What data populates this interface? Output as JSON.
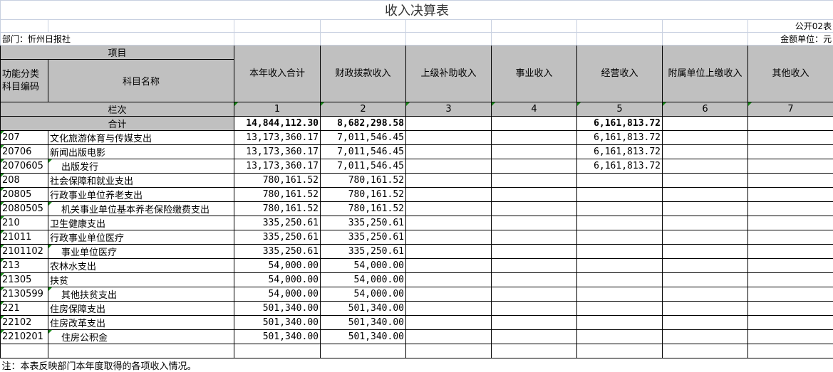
{
  "title": "收入决算表",
  "form_code": "公开02表",
  "department": "部门：忻州日报社",
  "unit": "金额单位：元",
  "header": {
    "item": "项目",
    "code": "功能分类科目编码",
    "name": "科目名称",
    "columns": [
      "本年收入合计",
      "财政拨款收入",
      "上级补助收入",
      "事业收入",
      "经营收入",
      "附属单位上缴收入",
      "其他收入"
    ],
    "row_index_label": "栏次",
    "row_index": [
      "1",
      "2",
      "3",
      "4",
      "5",
      "6",
      "7"
    ]
  },
  "total": {
    "label": "合计",
    "values": [
      "14,844,112.30",
      "8,682,298.58",
      "",
      "",
      "6,161,813.72",
      "",
      ""
    ]
  },
  "rows": [
    {
      "code": "207",
      "name": "文化旅游体育与传媒支出",
      "indent": false,
      "values": [
        "13,173,360.17",
        "7,011,546.45",
        "",
        "",
        "6,161,813.72",
        "",
        ""
      ]
    },
    {
      "code": "20706",
      "name": "新闻出版电影",
      "indent": false,
      "values": [
        "13,173,360.17",
        "7,011,546.45",
        "",
        "",
        "6,161,813.72",
        "",
        ""
      ]
    },
    {
      "code": "2070605",
      "name": "出版发行",
      "indent": true,
      "values": [
        "13,173,360.17",
        "7,011,546.45",
        "",
        "",
        "6,161,813.72",
        "",
        ""
      ]
    },
    {
      "code": "208",
      "name": "社会保障和就业支出",
      "indent": false,
      "values": [
        "780,161.52",
        "780,161.52",
        "",
        "",
        "",
        "",
        ""
      ]
    },
    {
      "code": "20805",
      "name": "行政事业单位养老支出",
      "indent": false,
      "values": [
        "780,161.52",
        "780,161.52",
        "",
        "",
        "",
        "",
        ""
      ]
    },
    {
      "code": "2080505",
      "name": "机关事业单位基本养老保险缴费支出",
      "indent": true,
      "values": [
        "780,161.52",
        "780,161.52",
        "",
        "",
        "",
        "",
        ""
      ]
    },
    {
      "code": "210",
      "name": "卫生健康支出",
      "indent": false,
      "values": [
        "335,250.61",
        "335,250.61",
        "",
        "",
        "",
        "",
        ""
      ]
    },
    {
      "code": "21011",
      "name": "行政事业单位医疗",
      "indent": false,
      "values": [
        "335,250.61",
        "335,250.61",
        "",
        "",
        "",
        "",
        ""
      ]
    },
    {
      "code": "2101102",
      "name": "事业单位医疗",
      "indent": true,
      "values": [
        "335,250.61",
        "335,250.61",
        "",
        "",
        "",
        "",
        ""
      ]
    },
    {
      "code": "213",
      "name": "农林水支出",
      "indent": false,
      "values": [
        "54,000.00",
        "54,000.00",
        "",
        "",
        "",
        "",
        ""
      ]
    },
    {
      "code": "21305",
      "name": "扶贫",
      "indent": false,
      "values": [
        "54,000.00",
        "54,000.00",
        "",
        "",
        "",
        "",
        ""
      ]
    },
    {
      "code": "2130599",
      "name": "其他扶贫支出",
      "indent": true,
      "values": [
        "54,000.00",
        "54,000.00",
        "",
        "",
        "",
        "",
        ""
      ]
    },
    {
      "code": "221",
      "name": "住房保障支出",
      "indent": false,
      "values": [
        "501,340.00",
        "501,340.00",
        "",
        "",
        "",
        "",
        ""
      ]
    },
    {
      "code": "22102",
      "name": "住房改革支出",
      "indent": false,
      "values": [
        "501,340.00",
        "501,340.00",
        "",
        "",
        "",
        "",
        ""
      ]
    },
    {
      "code": "2210201",
      "name": "住房公积金",
      "indent": true,
      "values": [
        "501,340.00",
        "501,340.00",
        "",
        "",
        "",
        "",
        ""
      ]
    }
  ],
  "note": "注：本表反映部门本年度取得的各项收入情况。",
  "colors": {
    "header_bg": "#c0c0c0",
    "marker": "#1a8a1a",
    "gridline": "#c8d0e0"
  }
}
